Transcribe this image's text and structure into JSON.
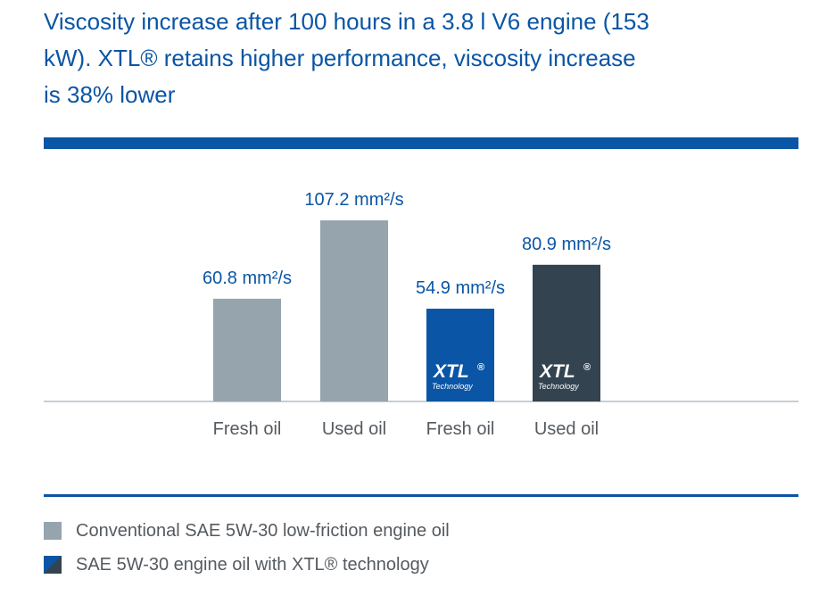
{
  "title": "Viscosity increase after 100 hours in a 3.8 l V6 engine (153 kW). XTL® retains higher performance, viscosity increase is 38% lower",
  "colors": {
    "accent": "#0a55a5",
    "conventional": "#96a4ae",
    "xtl_fresh": "#0a55a5",
    "xtl_used": "#33434f",
    "axis": "#c7ced3",
    "text": "#555a5f"
  },
  "legend": [
    {
      "label": "Conventional SAE 5W-30 low-friction engine oil",
      "color": "#96a4ae"
    },
    {
      "label": "SAE 5W-30 engine oil with XTL® technology",
      "color": "#0a55a5/#33434f"
    }
  ],
  "chart_data": {
    "type": "bar",
    "title": "Viscosity increase after 100 hours in a 3.8 l V6 engine (153 kW). XTL® retains higher performance, viscosity increase is 38% lower",
    "categories": [
      "Fresh oil",
      "Used oil",
      "Fresh oil",
      "Used oil"
    ],
    "values": [
      60.8,
      107.2,
      54.9,
      80.9
    ],
    "value_labels": [
      "60.8 mm²/s",
      "107.2 mm²/s",
      "54.9 mm²/s",
      "80.9 mm²/s"
    ],
    "unit": "mm²/s",
    "series_of_bar": [
      "Conventional SAE 5W-30 low-friction engine oil",
      "Conventional SAE 5W-30 low-friction engine oil",
      "SAE 5W-30 engine oil with XTL® technology",
      "SAE 5W-30 engine oil with XTL® technology"
    ],
    "bar_colors": [
      "#96a4ae",
      "#96a4ae",
      "#0a55a5",
      "#33434f"
    ],
    "bar_logos": [
      null,
      null,
      {
        "mark": "XTL",
        "reg": "®",
        "sub": "Technology"
      },
      {
        "mark": "XTL",
        "reg": "®",
        "sub": "Technology"
      }
    ],
    "ylim": [
      0,
      107.2
    ],
    "grid": false,
    "xlabel": "",
    "ylabel": ""
  }
}
